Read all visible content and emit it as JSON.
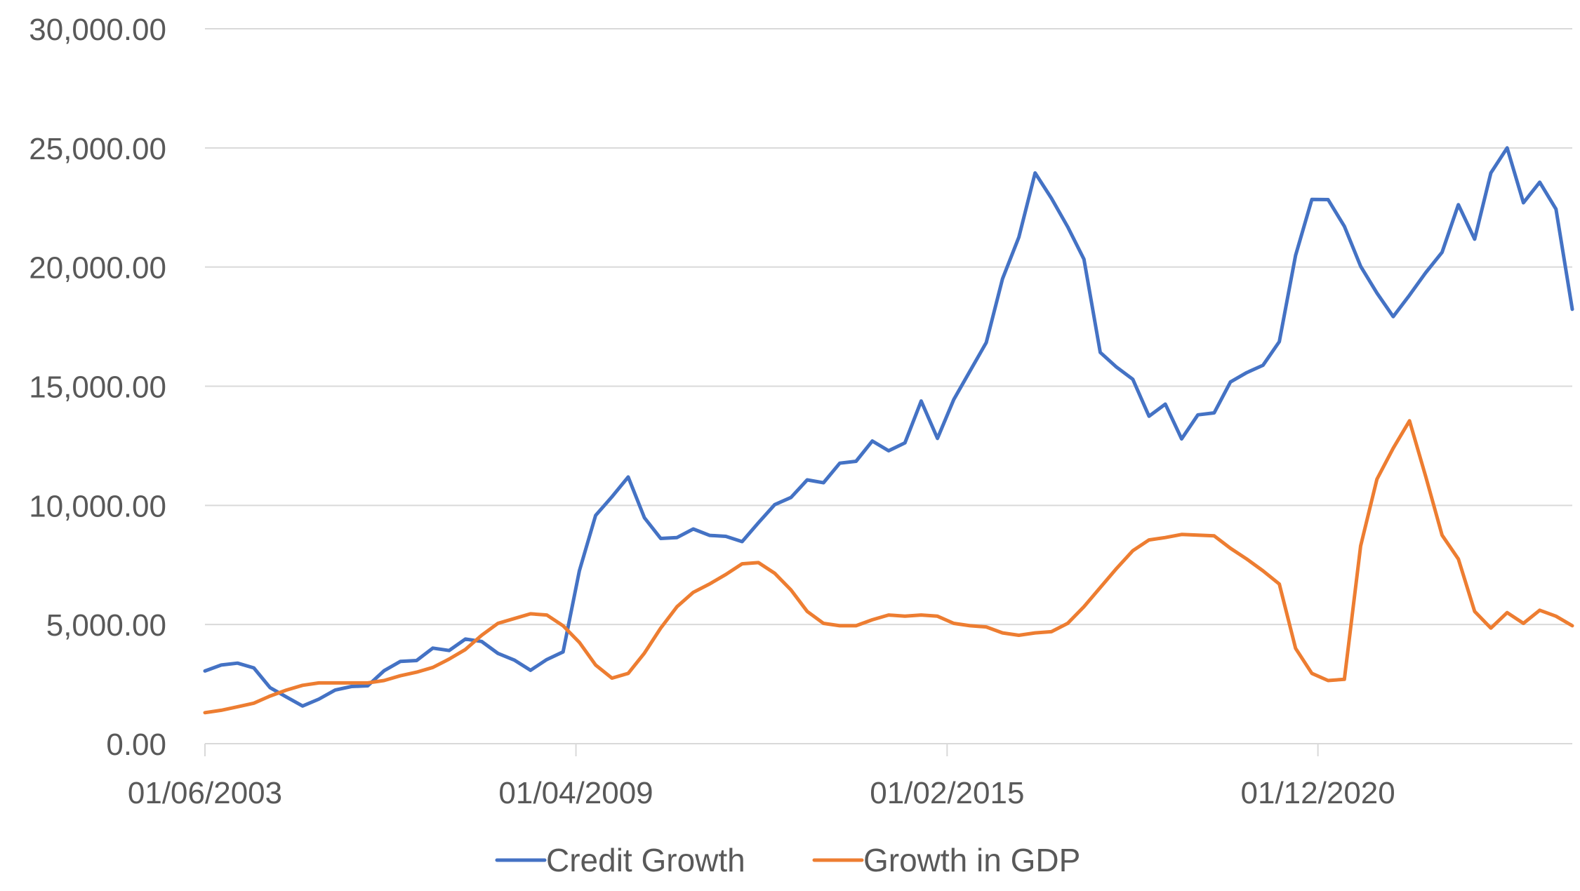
{
  "chart_data": {
    "type": "line",
    "x_tick_labels": [
      "01/06/2003",
      "01/04/2009",
      "01/02/2015",
      "01/12/2020"
    ],
    "y_tick_labels": [
      "0.00",
      "5,000.00",
      "10,000.00",
      "15,000.00",
      "20,000.00",
      "25,000.00",
      "30,000.00"
    ],
    "ylim": [
      0,
      30000
    ],
    "x_start": "01/06/2003",
    "x_end": "01/12/2024",
    "grid": {
      "horizontal": true,
      "vertical": false
    },
    "legend_position": "bottom",
    "series": [
      {
        "name": "Credit Growth",
        "color": "#4472C4",
        "values": [
          3050,
          3300,
          3380,
          3180,
          2350,
          1960,
          1580,
          1870,
          2250,
          2400,
          2430,
          3060,
          3450,
          3490,
          4010,
          3910,
          4390,
          4290,
          3790,
          3510,
          3080,
          3530,
          3850,
          7250,
          9580,
          10360,
          11190,
          9480,
          8610,
          8650,
          9010,
          8740,
          8700,
          8480,
          9270,
          10030,
          10330,
          11070,
          10950,
          11770,
          11850,
          12700,
          12290,
          12620,
          14380,
          12810,
          14440,
          15640,
          16830,
          19510,
          21250,
          23950,
          22890,
          21690,
          20330,
          16420,
          15800,
          15290,
          13740,
          14250,
          12790,
          13800,
          13880,
          15180,
          15570,
          15880,
          16870,
          20490,
          22840,
          22830,
          21710,
          20030,
          18910,
          17920,
          18820,
          19770,
          20620,
          22620,
          21170,
          23950,
          25000,
          22700,
          23560,
          22430,
          18230
        ]
      },
      {
        "name": "Growth in GDP",
        "color": "#ED7D31",
        "values": [
          1300,
          1400,
          1550,
          1700,
          2000,
          2250,
          2450,
          2550,
          2550,
          2550,
          2550,
          2650,
          2850,
          3000,
          3200,
          3550,
          3950,
          4550,
          5050,
          5250,
          5450,
          5400,
          4950,
          4250,
          3300,
          2750,
          2950,
          3800,
          4850,
          5750,
          6350,
          6700,
          7100,
          7550,
          7600,
          7150,
          6450,
          5550,
          5050,
          4950,
          4950,
          5200,
          5400,
          5350,
          5400,
          5350,
          5050,
          4950,
          4900,
          4650,
          4550,
          4650,
          4700,
          5050,
          5750,
          6550,
          7350,
          8100,
          8550,
          8650,
          8780,
          8750,
          8720,
          8200,
          7750,
          7250,
          6700,
          4000,
          2950,
          2650,
          2700,
          8300,
          11100,
          12400,
          13550,
          11200,
          8750,
          7750,
          5550,
          4850,
          5500,
          5050,
          5600,
          5350,
          4950
        ]
      }
    ]
  }
}
